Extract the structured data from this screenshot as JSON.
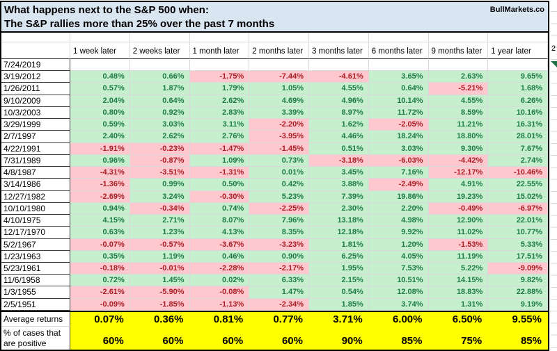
{
  "title": {
    "line1": "What happens next to the S&P 500 when:",
    "line2": "The S&P rallies more than 25% over the past 7 months",
    "brand": "BullMarkets.co"
  },
  "edge": {
    "partial_text": "2"
  },
  "colors": {
    "title-bg": "#d9e5f1",
    "pos-bg": "#c6efce",
    "pos-text": "#1e7b46",
    "neg-bg": "#ffc7ce",
    "neg-text": "#a81e24",
    "sum-bg": "#ffff00"
  },
  "chart_data": {
    "type": "table",
    "title": "What happens next to the S&P 500 when: The S&P rallies more than 25% over the past 7 months",
    "columns": [
      "1 week later",
      "2 weeks later",
      "1 month later",
      "2 months later",
      "3 months later",
      "6 months later",
      "9 months later",
      "1 year later"
    ],
    "rows": [
      {
        "date": "7/24/2019",
        "values": [
          "",
          "",
          "",
          "",
          "",
          "",
          "",
          ""
        ]
      },
      {
        "date": "3/19/2012",
        "values": [
          "0.48%",
          "0.66%",
          "-1.75%",
          "-7.44%",
          "-4.61%",
          "3.65%",
          "2.63%",
          "9.65%"
        ]
      },
      {
        "date": "1/26/2011",
        "values": [
          "0.57%",
          "1.87%",
          "1.79%",
          "1.05%",
          "4.55%",
          "0.64%",
          "-5.21%",
          "1.68%"
        ]
      },
      {
        "date": "9/10/2009",
        "values": [
          "2.04%",
          "0.64%",
          "2.62%",
          "4.69%",
          "4.96%",
          "10.14%",
          "4.55%",
          "6.26%"
        ]
      },
      {
        "date": "10/3/2003",
        "values": [
          "0.80%",
          "0.92%",
          "2.83%",
          "3.39%",
          "8.97%",
          "11.72%",
          "8.59%",
          "10.16%"
        ]
      },
      {
        "date": "3/29/1999",
        "values": [
          "0.59%",
          "3.03%",
          "3.11%",
          "-2.20%",
          "1.62%",
          "-2.05%",
          "11.21%",
          "16.31%"
        ]
      },
      {
        "date": "2/7/1997",
        "values": [
          "2.40%",
          "2.62%",
          "2.76%",
          "-3.95%",
          "4.46%",
          "18.24%",
          "18.80%",
          "28.01%"
        ]
      },
      {
        "date": "4/22/1991",
        "values": [
          "-1.91%",
          "-0.23%",
          "-1.47%",
          "-1.45%",
          "0.51%",
          "3.03%",
          "9.30%",
          "7.67%"
        ]
      },
      {
        "date": "7/31/1989",
        "values": [
          "0.96%",
          "-0.87%",
          "1.09%",
          "0.73%",
          "-3.18%",
          "-6.03%",
          "-4.42%",
          "2.74%"
        ]
      },
      {
        "date": "4/8/1987",
        "values": [
          "-4.31%",
          "-3.51%",
          "-1.31%",
          "0.01%",
          "3.45%",
          "7.16%",
          "-12.17%",
          "-10.46%"
        ]
      },
      {
        "date": "3/14/1986",
        "values": [
          "-1.36%",
          "0.99%",
          "0.50%",
          "0.42%",
          "3.88%",
          "-2.49%",
          "4.91%",
          "22.55%"
        ]
      },
      {
        "date": "12/27/1982",
        "values": [
          "-2.69%",
          "3.24%",
          "-0.30%",
          "5.23%",
          "7.39%",
          "19.86%",
          "19.23%",
          "15.02%"
        ]
      },
      {
        "date": "10/10/1980",
        "values": [
          "0.94%",
          "-0.34%",
          "0.74%",
          "-2.25%",
          "2.30%",
          "2.20%",
          "-0.49%",
          "-6.97%"
        ]
      },
      {
        "date": "4/10/1975",
        "values": [
          "4.15%",
          "2.71%",
          "8.07%",
          "7.96%",
          "13.18%",
          "4.98%",
          "12.90%",
          "22.01%"
        ]
      },
      {
        "date": "12/17/1970",
        "values": [
          "0.63%",
          "1.23%",
          "4.13%",
          "8.35%",
          "12.18%",
          "9.92%",
          "11.02%",
          "10.77%"
        ]
      },
      {
        "date": "5/2/1967",
        "values": [
          "-0.07%",
          "-0.57%",
          "-3.67%",
          "-3.23%",
          "1.81%",
          "1.20%",
          "-1.53%",
          "5.33%"
        ]
      },
      {
        "date": "1/23/1963",
        "values": [
          "0.35%",
          "1.19%",
          "0.46%",
          "0.90%",
          "6.25%",
          "4.05%",
          "11.19%",
          "17.51%"
        ]
      },
      {
        "date": "5/23/1961",
        "values": [
          "-0.18%",
          "-0.01%",
          "-2.28%",
          "-2.17%",
          "1.95%",
          "7.53%",
          "5.22%",
          "-9.09%"
        ]
      },
      {
        "date": "11/6/1958",
        "values": [
          "0.72%",
          "1.45%",
          "0.02%",
          "6.33%",
          "2.15%",
          "10.51%",
          "14.15%",
          "9.82%"
        ]
      },
      {
        "date": "1/3/1955",
        "values": [
          "-2.61%",
          "-5.90%",
          "-0.08%",
          "1.47%",
          "0.54%",
          "12.08%",
          "18.83%",
          "22.88%"
        ]
      },
      {
        "date": "2/5/1951",
        "values": [
          "-0.09%",
          "-1.85%",
          "-1.13%",
          "-2.34%",
          "1.85%",
          "3.74%",
          "1.31%",
          "9.19%"
        ]
      }
    ],
    "summary": [
      {
        "label": "Average returns",
        "values": [
          "0.07%",
          "0.36%",
          "0.81%",
          "0.77%",
          "3.71%",
          "6.00%",
          "6.50%",
          "9.55%"
        ]
      },
      {
        "label": "% of cases that are positive",
        "values": [
          "60%",
          "60%",
          "60%",
          "60%",
          "90%",
          "85%",
          "75%",
          "85%"
        ]
      }
    ],
    "legend_position": "none",
    "grid": true
  }
}
